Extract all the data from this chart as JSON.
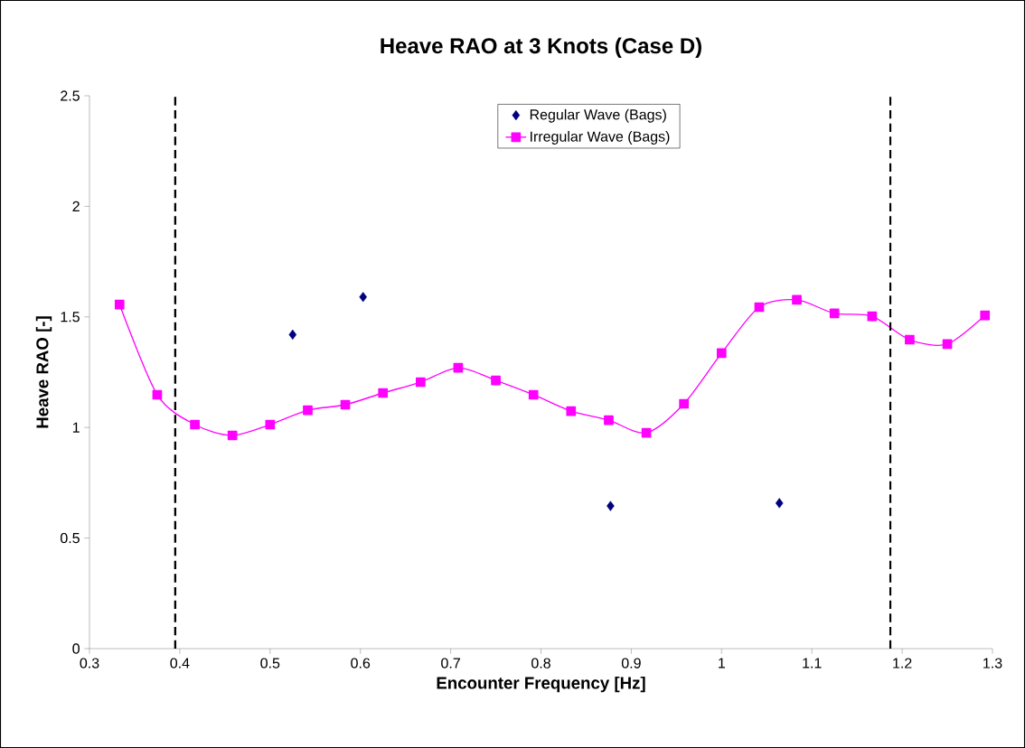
{
  "chart_data": {
    "type": "line",
    "title": "Heave RAO at 3 Knots (Case D)",
    "xlabel": "Encounter Frequency [Hz]",
    "ylabel": "Heave RAO [-]",
    "xlim": [
      0.3,
      1.3
    ],
    "xticks": [
      0.3,
      0.4,
      0.5,
      0.6,
      0.7,
      0.8,
      0.9,
      1,
      1.1,
      1.2,
      1.3
    ],
    "ylim": [
      0,
      2.5
    ],
    "yticks": [
      0,
      0.5,
      1,
      1.5,
      2,
      2.5
    ],
    "grid": false,
    "legend": "top",
    "series": [
      {
        "name": "Regular Wave (Bags)",
        "type": "scatter",
        "marker": "diamond",
        "color": "#000080",
        "x": [
          0.525,
          0.603,
          0.877,
          1.064
        ],
        "values": [
          1.42,
          1.59,
          0.645,
          0.658
        ]
      },
      {
        "name": "Irregular Wave (Bags)",
        "marker": "square",
        "color": "#ff00ff",
        "x": [
          0.3333,
          0.375,
          0.4167,
          0.4583,
          0.5,
          0.5417,
          0.5833,
          0.625,
          0.6667,
          0.7083,
          0.75,
          0.7917,
          0.8333,
          0.875,
          0.9167,
          0.9583,
          1.0,
          1.0417,
          1.0833,
          1.125,
          1.1667,
          1.2083,
          1.25,
          1.2917
        ],
        "values": [
          1.556,
          1.148,
          1.013,
          0.964,
          1.013,
          1.078,
          1.103,
          1.156,
          1.205,
          1.27,
          1.213,
          1.148,
          1.074,
          1.033,
          0.976,
          1.107,
          1.336,
          1.544,
          1.577,
          1.516,
          1.503,
          1.397,
          1.377,
          1.507
        ]
      }
    ],
    "ref_lines": [
      {
        "axis": "x",
        "value": 0.395,
        "color": "#000000",
        "line_style": "dashed"
      },
      {
        "axis": "x",
        "value": 1.187,
        "color": "#000000",
        "line_style": "dashed"
      }
    ]
  }
}
